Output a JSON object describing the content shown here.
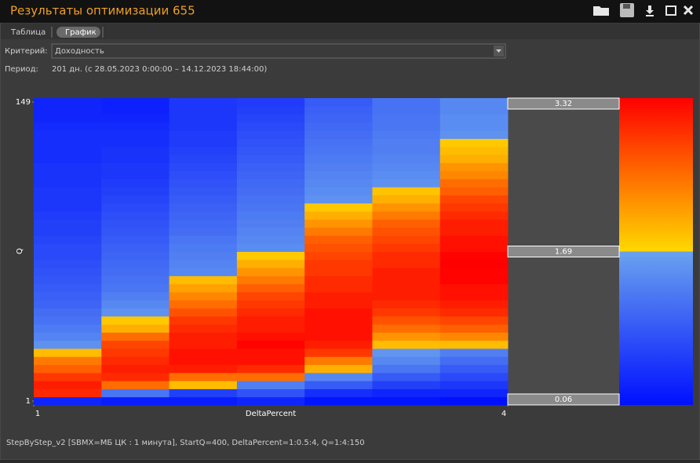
{
  "window": {
    "title": "Результаты оптимизации 655"
  },
  "tabs": [
    "Таблица",
    "График"
  ],
  "criterion": {
    "label": "Критерий:",
    "value": "Доходность"
  },
  "period": {
    "label": "Период:",
    "value": "201 дн. (с 28.05.2023 0:00:00 – 14.12.2023 18:44:00)"
  },
  "footer": "StepByStep_v2 [SBMX=МБ ЦК : 1 минута], StartQ=400, DeltaPercent=1:0.5:4, Q=1:4:150",
  "chart_data": {
    "type": "heatmap",
    "x_label": "DeltaPercent",
    "y_label": "Q",
    "x": [
      1,
      1.5,
      2,
      2.5,
      3,
      3.5,
      4
    ],
    "y": [
      1,
      5,
      9,
      13,
      17,
      21,
      25,
      29,
      33,
      37,
      41,
      45,
      49,
      53,
      57,
      61,
      65,
      69,
      73,
      77,
      81,
      85,
      89,
      93,
      97,
      101,
      105,
      109,
      113,
      117,
      121,
      125,
      129,
      133,
      137,
      141,
      145,
      149
    ],
    "xlim": [
      1,
      4
    ],
    "xticks": [
      1,
      4
    ],
    "ylim": [
      1,
      149
    ],
    "yticks": [
      1,
      149
    ],
    "zlim": [
      0.06,
      3.32
    ],
    "colorbar_ticks": [
      3.32,
      1.69,
      0.06
    ],
    "colors": [
      "#0010ff",
      "#6aa2ee",
      "#ffd800",
      "#ff0000"
    ],
    "values": [
      [
        0.3,
        3.0,
        3.1,
        2.9,
        2.6,
        2.4,
        1.9,
        1.5,
        1.35,
        1.25,
        1.15,
        1.1,
        1.0,
        0.95,
        0.9,
        0.85,
        0.8,
        0.75,
        0.7,
        0.7,
        0.65,
        0.6,
        0.6,
        0.55,
        0.5,
        0.5,
        0.5,
        0.45,
        0.45,
        0.45,
        0.4,
        0.4,
        0.4,
        0.4,
        0.35,
        0.3,
        0.3,
        0.3
      ],
      [
        0.2,
        1.2,
        2.5,
        3.0,
        3.1,
        3.0,
        2.9,
        2.8,
        2.5,
        2.0,
        1.8,
        1.5,
        1.4,
        1.3,
        1.2,
        1.15,
        1.1,
        1.05,
        1.0,
        0.95,
        0.9,
        0.85,
        0.8,
        0.75,
        0.7,
        0.65,
        0.6,
        0.55,
        0.5,
        0.5,
        0.45,
        0.45,
        0.4,
        0.4,
        0.35,
        0.3,
        0.25,
        0.25
      ],
      [
        0.2,
        0.6,
        1.9,
        2.5,
        3.1,
        3.2,
        3.2,
        3.1,
        3.1,
        3.0,
        2.9,
        2.7,
        2.5,
        2.3,
        2.1,
        1.9,
        1.4,
        1.35,
        1.3,
        1.25,
        1.2,
        1.1,
        1.05,
        1.0,
        0.95,
        0.9,
        0.85,
        0.8,
        0.75,
        0.7,
        0.65,
        0.6,
        0.55,
        0.55,
        0.5,
        0.5,
        0.5,
        0.5
      ],
      [
        0.3,
        0.8,
        1.3,
        2.5,
        3.0,
        3.2,
        3.2,
        3.3,
        3.2,
        3.1,
        3.1,
        3.0,
        2.9,
        2.8,
        2.6,
        2.4,
        2.2,
        2.0,
        1.8,
        1.45,
        1.4,
        1.35,
        1.3,
        1.25,
        1.2,
        1.15,
        1.1,
        1.05,
        1.0,
        0.95,
        0.9,
        0.85,
        0.8,
        0.75,
        0.7,
        0.65,
        0.6,
        0.55
      ],
      [
        0.1,
        0.4,
        0.9,
        1.4,
        2.0,
        2.4,
        2.9,
        3.1,
        3.2,
        3.2,
        3.2,
        3.2,
        3.1,
        3.1,
        3.0,
        3.0,
        2.9,
        2.9,
        2.8,
        2.7,
        2.6,
        2.4,
        2.2,
        2.0,
        1.8,
        1.5,
        1.45,
        1.4,
        1.35,
        1.3,
        1.25,
        1.2,
        1.15,
        1.1,
        1.05,
        1.0,
        0.95,
        0.9
      ],
      [
        0.1,
        0.3,
        0.6,
        0.9,
        1.2,
        1.4,
        1.55,
        1.9,
        2.2,
        2.5,
        2.7,
        2.9,
        3.0,
        3.1,
        3.1,
        3.1,
        3.1,
        3.0,
        3.0,
        2.9,
        2.8,
        2.7,
        2.6,
        2.4,
        2.2,
        2.0,
        1.85,
        1.5,
        1.45,
        1.4,
        1.35,
        1.3,
        1.3,
        1.25,
        1.2,
        1.2,
        1.15,
        1.15
      ],
      [
        0.06,
        0.3,
        0.5,
        0.7,
        0.9,
        1.1,
        1.3,
        1.9,
        2.3,
        2.6,
        2.8,
        3.0,
        3.1,
        3.2,
        3.2,
        3.3,
        3.3,
        3.32,
        3.3,
        3.2,
        3.2,
        3.1,
        3.1,
        3.0,
        2.9,
        2.8,
        2.6,
        2.5,
        2.3,
        2.2,
        2.0,
        1.9,
        1.8,
        1.5,
        1.45,
        1.45,
        1.4,
        1.4
      ]
    ]
  }
}
